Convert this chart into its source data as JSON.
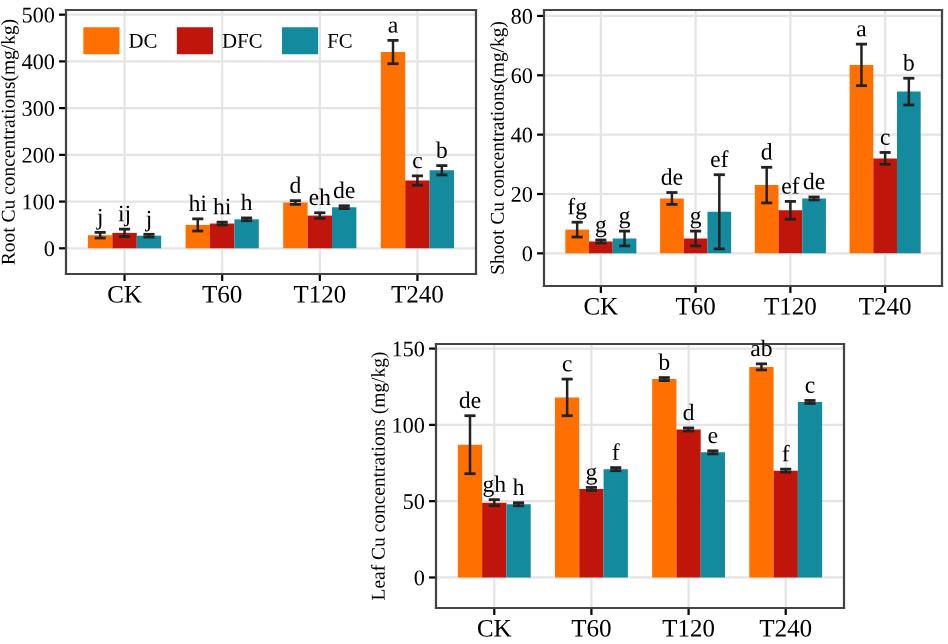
{
  "chart_data": [
    {
      "type": "bar",
      "ylabel": "Root Cu concentrations(mg/kg)",
      "categories": [
        "CK",
        "T60",
        "T120",
        "T240"
      ],
      "ylim": [
        -55,
        510
      ],
      "yticks": [
        0,
        100,
        200,
        300,
        400,
        500
      ],
      "grid": true,
      "legend": "top left",
      "series": [
        {
          "name": "DC",
          "color": "#ff7000",
          "values": [
            28,
            50,
            98,
            420
          ],
          "errors": [
            6,
            13,
            4,
            25
          ]
        },
        {
          "name": "DFC",
          "color": "#c0150a",
          "values": [
            33,
            53,
            70,
            145
          ],
          "errors": [
            8,
            3,
            6,
            10
          ]
        },
        {
          "name": "FC",
          "color": "#138a9e",
          "values": [
            27,
            62,
            88,
            167
          ],
          "errors": [
            3,
            3,
            3,
            10
          ]
        }
      ],
      "annotations": [
        "j",
        "ij",
        "j",
        "hi",
        "hi",
        "h",
        "d",
        "eh",
        "de",
        "a",
        "c",
        "b"
      ]
    },
    {
      "type": "bar",
      "ylabel": "Shoot Cu concentrations(mg/kg)",
      "categories": [
        "CK",
        "T60",
        "T120",
        "T240"
      ],
      "ylim": [
        -11,
        82
      ],
      "yticks": [
        0,
        20,
        40,
        60,
        80
      ],
      "grid": true,
      "series": [
        {
          "color": "#ff7000",
          "values": [
            8,
            18.5,
            23,
            63.5
          ],
          "errors": [
            2.5,
            2,
            6,
            7
          ]
        },
        {
          "color": "#c0150a",
          "values": [
            4,
            5,
            14.5,
            32
          ],
          "errors": [
            0.5,
            2.5,
            3,
            2
          ]
        },
        {
          "color": "#138a9e",
          "values": [
            5,
            14,
            18.5,
            54.5
          ],
          "errors": [
            2.5,
            12.5,
            0.5,
            4.5
          ]
        }
      ],
      "annotations": [
        "fg",
        "g",
        "g",
        "de",
        "g",
        "ef",
        "d",
        "ef",
        "de",
        "a",
        "c",
        "b"
      ]
    },
    {
      "type": "bar",
      "ylabel": "Leaf Cu concentrations (mg/kg)",
      "categories": [
        "CK",
        "T60",
        "T120",
        "T240"
      ],
      "ylim": [
        -20,
        153
      ],
      "yticks": [
        0,
        50,
        100,
        150
      ],
      "grid": true,
      "series": [
        {
          "color": "#ff7000",
          "values": [
            87,
            118,
            130,
            138
          ],
          "errors": [
            19,
            12,
            1,
            2
          ]
        },
        {
          "color": "#c0150a",
          "values": [
            49,
            58,
            97,
            70
          ],
          "errors": [
            2,
            1,
            1,
            1
          ]
        },
        {
          "color": "#138a9e",
          "values": [
            48,
            71,
            82,
            115
          ],
          "errors": [
            1,
            1,
            1,
            1
          ]
        }
      ],
      "annotations": [
        "de",
        "gh",
        "h",
        "c",
        "g",
        "f",
        "b",
        "d",
        "e",
        "ab",
        "f",
        "c"
      ]
    }
  ]
}
